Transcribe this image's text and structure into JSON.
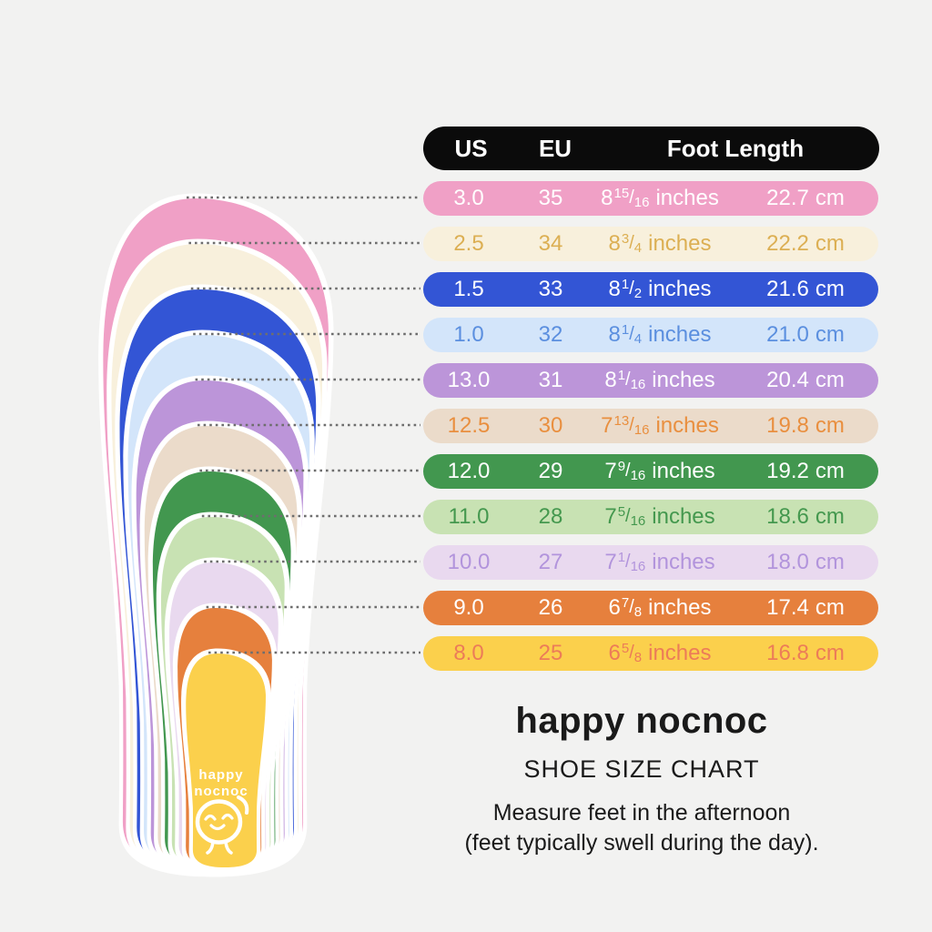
{
  "table": {
    "header": {
      "us": "US",
      "eu": "EU",
      "foot_length": "Foot Length",
      "bg": "#0B0B0B",
      "fg": "#FFFFFF"
    },
    "units": {
      "inches": "inches",
      "cm": "cm"
    },
    "rows": [
      {
        "us": "3.0",
        "eu": "35",
        "inch_whole": "8",
        "inch_num": "15",
        "inch_den": "16",
        "cm": "22.7",
        "bg": "#F0A0C6",
        "fg": "#FFFFFF"
      },
      {
        "us": "2.5",
        "eu": "34",
        "inch_whole": "8",
        "inch_num": "3",
        "inch_den": "4",
        "cm": "22.2",
        "bg": "#F8F0DC",
        "fg": "#DCAF53"
      },
      {
        "us": "1.5",
        "eu": "33",
        "inch_whole": "8",
        "inch_num": "1",
        "inch_den": "2",
        "cm": "21.6",
        "bg": "#3355D5",
        "fg": "#FFFFFF"
      },
      {
        "us": "1.0",
        "eu": "32",
        "inch_whole": "8",
        "inch_num": "1",
        "inch_den": "4",
        "cm": "21.0",
        "bg": "#D3E5FA",
        "fg": "#5B8FDF"
      },
      {
        "us": "13.0",
        "eu": "31",
        "inch_whole": "8",
        "inch_num": "1",
        "inch_den": "16",
        "cm": "20.4",
        "bg": "#BC95D9",
        "fg": "#FFFFFF"
      },
      {
        "us": "12.5",
        "eu": "30",
        "inch_whole": "7",
        "inch_num": "13",
        "inch_den": "16",
        "cm": "19.8",
        "bg": "#EBDBCA",
        "fg": "#E98F3F"
      },
      {
        "us": "12.0",
        "eu": "29",
        "inch_whole": "7",
        "inch_num": "9",
        "inch_den": "16",
        "cm": "19.2",
        "bg": "#42974F",
        "fg": "#FFFFFF"
      },
      {
        "us": "11.0",
        "eu": "28",
        "inch_whole": "7",
        "inch_num": "5",
        "inch_den": "16",
        "cm": "18.6",
        "bg": "#C8E2B3",
        "fg": "#44984E"
      },
      {
        "us": "10.0",
        "eu": "27",
        "inch_whole": "7",
        "inch_num": "1",
        "inch_den": "16",
        "cm": "18.0",
        "bg": "#E9D9EF",
        "fg": "#B294DC"
      },
      {
        "us": "9.0",
        "eu": "26",
        "inch_whole": "6",
        "inch_num": "7",
        "inch_den": "8",
        "cm": "17.4",
        "bg": "#E6803D",
        "fg": "#FFFFFF"
      },
      {
        "us": "8.0",
        "eu": "25",
        "inch_whole": "6",
        "inch_num": "5",
        "inch_den": "8",
        "cm": "16.8",
        "bg": "#FBD04C",
        "fg": "#EC7C58"
      }
    ]
  },
  "insole_stack": {
    "logo_line1": "happy",
    "logo_line2": "nocnoc",
    "logo_color": "#FFFFFF",
    "outline_color": "#FFFFFF",
    "leader_color": "#6E6E6E"
  },
  "footer": {
    "brand": "happy nocnoc",
    "subtitle": "SHOE SIZE CHART",
    "note_line1": "Measure feet in the afternoon",
    "note_line2": "(feet typically swell during the day).",
    "text_color": "#1A1A1A"
  },
  "page": {
    "bg": "#F2F2F1"
  },
  "chart_data": {
    "type": "table",
    "title": "happy nocnoc SHOE SIZE CHART",
    "columns": [
      "US",
      "EU",
      "Foot Length (inches)",
      "Foot Length (cm)"
    ],
    "rows": [
      [
        "3.0",
        "35",
        "8 15/16 inches",
        "22.7 cm"
      ],
      [
        "2.5",
        "34",
        "8 3/4 inches",
        "22.2 cm"
      ],
      [
        "1.5",
        "33",
        "8 1/2 inches",
        "21.6 cm"
      ],
      [
        "1.0",
        "32",
        "8 1/4 inches",
        "21.0 cm"
      ],
      [
        "13.0",
        "31",
        "8 1/16 inches",
        "20.4 cm"
      ],
      [
        "12.5",
        "30",
        "7 13/16 inches",
        "19.8 cm"
      ],
      [
        "12.0",
        "29",
        "7 9/16 inches",
        "19.2 cm"
      ],
      [
        "11.0",
        "28",
        "7 5/16 inches",
        "18.6 cm"
      ],
      [
        "10.0",
        "27",
        "7 1/16 inches",
        "18.0 cm"
      ],
      [
        "9.0",
        "26",
        "6 7/8 inches",
        "17.4 cm"
      ],
      [
        "8.0",
        "25",
        "6 5/8 inches",
        "16.8 cm"
      ]
    ],
    "notes": "Nested insole illustration on the left; each insole color matches a table row; dotted leader lines connect insole toe edges to rows."
  }
}
